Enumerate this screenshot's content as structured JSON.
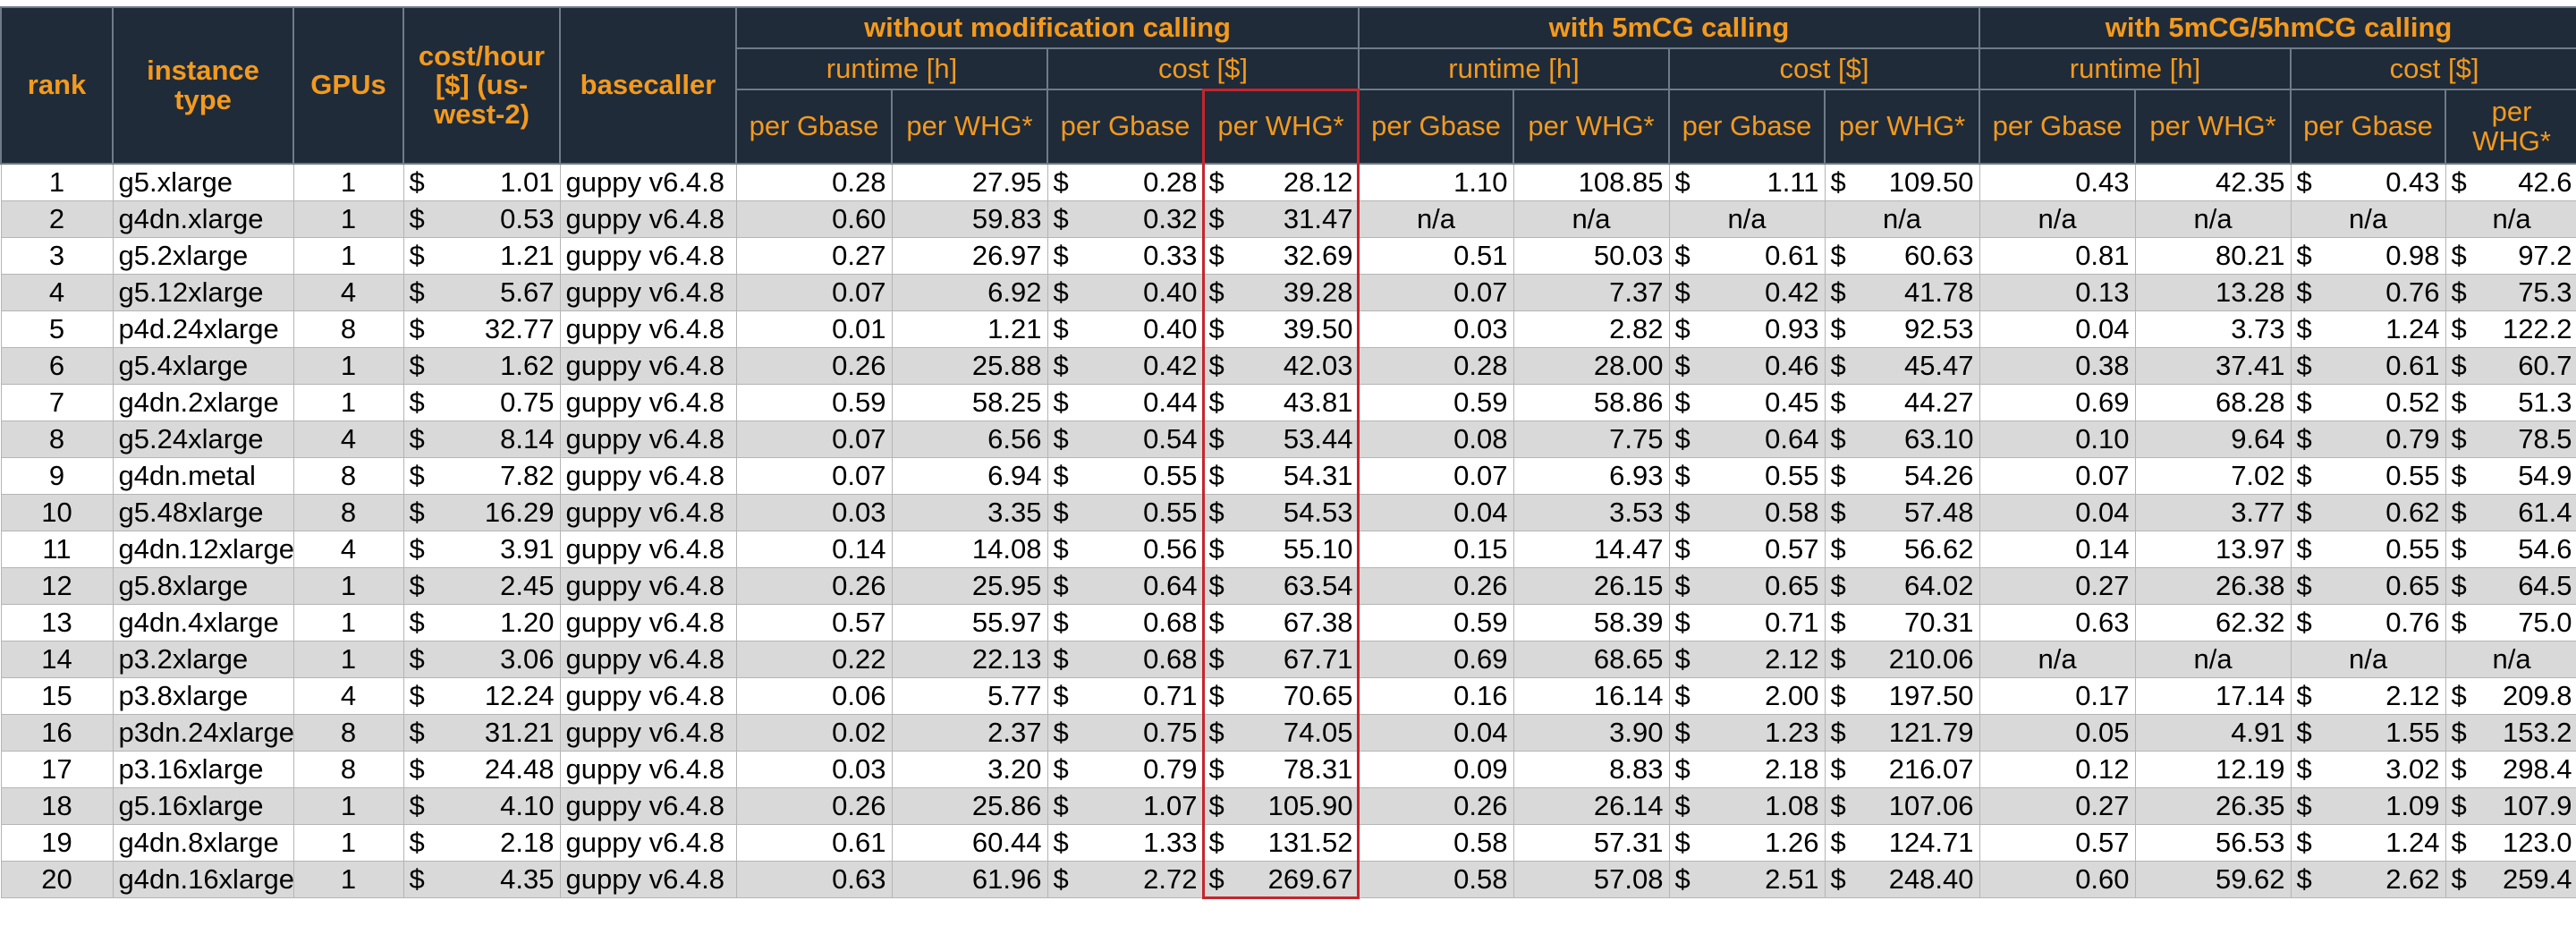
{
  "header": {
    "rank": "rank",
    "instance_type": "instance type",
    "gpus": "GPUs",
    "cost_hour": "cost/hour [$] (us-west-2)",
    "basecaller": "basecaller",
    "groups": [
      "without modification calling",
      "with 5mCG calling",
      "with 5mCG/5hmCG calling"
    ],
    "subgroups": [
      "runtime [h]",
      "cost [$]"
    ],
    "subcolumns": [
      "per Gbase",
      "per WHG*"
    ]
  },
  "table": {
    "currency": "$",
    "rows": [
      [
        "1",
        "g5.xlarge",
        "1",
        "1.01",
        "guppy v6.4.8",
        "0.28",
        "27.95",
        "0.28",
        "28.12",
        "1.10",
        "108.85",
        "1.11",
        "109.50",
        "0.43",
        "42.35",
        "0.43",
        "42.6"
      ],
      [
        "2",
        "g4dn.xlarge",
        "1",
        "0.53",
        "guppy v6.4.8",
        "0.60",
        "59.83",
        "0.32",
        "31.47",
        "n/a",
        "n/a",
        "n/a",
        "n/a",
        "n/a",
        "n/a",
        "n/a",
        "n/a"
      ],
      [
        "3",
        "g5.2xlarge",
        "1",
        "1.21",
        "guppy v6.4.8",
        "0.27",
        "26.97",
        "0.33",
        "32.69",
        "0.51",
        "50.03",
        "0.61",
        "60.63",
        "0.81",
        "80.21",
        "0.98",
        "97.2"
      ],
      [
        "4",
        "g5.12xlarge",
        "4",
        "5.67",
        "guppy v6.4.8",
        "0.07",
        "6.92",
        "0.40",
        "39.28",
        "0.07",
        "7.37",
        "0.42",
        "41.78",
        "0.13",
        "13.28",
        "0.76",
        "75.3"
      ],
      [
        "5",
        "p4d.24xlarge",
        "8",
        "32.77",
        "guppy v6.4.8",
        "0.01",
        "1.21",
        "0.40",
        "39.50",
        "0.03",
        "2.82",
        "0.93",
        "92.53",
        "0.04",
        "3.73",
        "1.24",
        "122.2"
      ],
      [
        "6",
        "g5.4xlarge",
        "1",
        "1.62",
        "guppy v6.4.8",
        "0.26",
        "25.88",
        "0.42",
        "42.03",
        "0.28",
        "28.00",
        "0.46",
        "45.47",
        "0.38",
        "37.41",
        "0.61",
        "60.7"
      ],
      [
        "7",
        "g4dn.2xlarge",
        "1",
        "0.75",
        "guppy v6.4.8",
        "0.59",
        "58.25",
        "0.44",
        "43.81",
        "0.59",
        "58.86",
        "0.45",
        "44.27",
        "0.69",
        "68.28",
        "0.52",
        "51.3"
      ],
      [
        "8",
        "g5.24xlarge",
        "4",
        "8.14",
        "guppy v6.4.8",
        "0.07",
        "6.56",
        "0.54",
        "53.44",
        "0.08",
        "7.75",
        "0.64",
        "63.10",
        "0.10",
        "9.64",
        "0.79",
        "78.5"
      ],
      [
        "9",
        "g4dn.metal",
        "8",
        "7.82",
        "guppy v6.4.8",
        "0.07",
        "6.94",
        "0.55",
        "54.31",
        "0.07",
        "6.93",
        "0.55",
        "54.26",
        "0.07",
        "7.02",
        "0.55",
        "54.9"
      ],
      [
        "10",
        "g5.48xlarge",
        "8",
        "16.29",
        "guppy v6.4.8",
        "0.03",
        "3.35",
        "0.55",
        "54.53",
        "0.04",
        "3.53",
        "0.58",
        "57.48",
        "0.04",
        "3.77",
        "0.62",
        "61.4"
      ],
      [
        "11",
        "g4dn.12xlarge",
        "4",
        "3.91",
        "guppy v6.4.8",
        "0.14",
        "14.08",
        "0.56",
        "55.10",
        "0.15",
        "14.47",
        "0.57",
        "56.62",
        "0.14",
        "13.97",
        "0.55",
        "54.6"
      ],
      [
        "12",
        "g5.8xlarge",
        "1",
        "2.45",
        "guppy v6.4.8",
        "0.26",
        "25.95",
        "0.64",
        "63.54",
        "0.26",
        "26.15",
        "0.65",
        "64.02",
        "0.27",
        "26.38",
        "0.65",
        "64.5"
      ],
      [
        "13",
        "g4dn.4xlarge",
        "1",
        "1.20",
        "guppy v6.4.8",
        "0.57",
        "55.97",
        "0.68",
        "67.38",
        "0.59",
        "58.39",
        "0.71",
        "70.31",
        "0.63",
        "62.32",
        "0.76",
        "75.0"
      ],
      [
        "14",
        "p3.2xlarge",
        "1",
        "3.06",
        "guppy v6.4.8",
        "0.22",
        "22.13",
        "0.68",
        "67.71",
        "0.69",
        "68.65",
        "2.12",
        "210.06",
        "n/a",
        "n/a",
        "n/a",
        "n/a"
      ],
      [
        "15",
        "p3.8xlarge",
        "4",
        "12.24",
        "guppy v6.4.8",
        "0.06",
        "5.77",
        "0.71",
        "70.65",
        "0.16",
        "16.14",
        "2.00",
        "197.50",
        "0.17",
        "17.14",
        "2.12",
        "209.8"
      ],
      [
        "16",
        "p3dn.24xlarge",
        "8",
        "31.21",
        "guppy v6.4.8",
        "0.02",
        "2.37",
        "0.75",
        "74.05",
        "0.04",
        "3.90",
        "1.23",
        "121.79",
        "0.05",
        "4.91",
        "1.55",
        "153.2"
      ],
      [
        "17",
        "p3.16xlarge",
        "8",
        "24.48",
        "guppy v6.4.8",
        "0.03",
        "3.20",
        "0.79",
        "78.31",
        "0.09",
        "8.83",
        "2.18",
        "216.07",
        "0.12",
        "12.19",
        "3.02",
        "298.4"
      ],
      [
        "18",
        "g5.16xlarge",
        "1",
        "4.10",
        "guppy v6.4.8",
        "0.26",
        "25.86",
        "1.07",
        "105.90",
        "0.26",
        "26.14",
        "1.08",
        "107.06",
        "0.27",
        "26.35",
        "1.09",
        "107.9"
      ],
      [
        "19",
        "g4dn.8xlarge",
        "1",
        "2.18",
        "guppy v6.4.8",
        "0.61",
        "60.44",
        "1.33",
        "131.52",
        "0.58",
        "57.31",
        "1.26",
        "124.71",
        "0.57",
        "56.53",
        "1.24",
        "123.0"
      ],
      [
        "20",
        "g4dn.16xlarge",
        "1",
        "4.35",
        "guppy v6.4.8",
        "0.63",
        "61.96",
        "2.72",
        "269.67",
        "0.58",
        "57.08",
        "2.51",
        "248.40",
        "0.60",
        "59.62",
        "2.62",
        "259.4"
      ]
    ]
  }
}
